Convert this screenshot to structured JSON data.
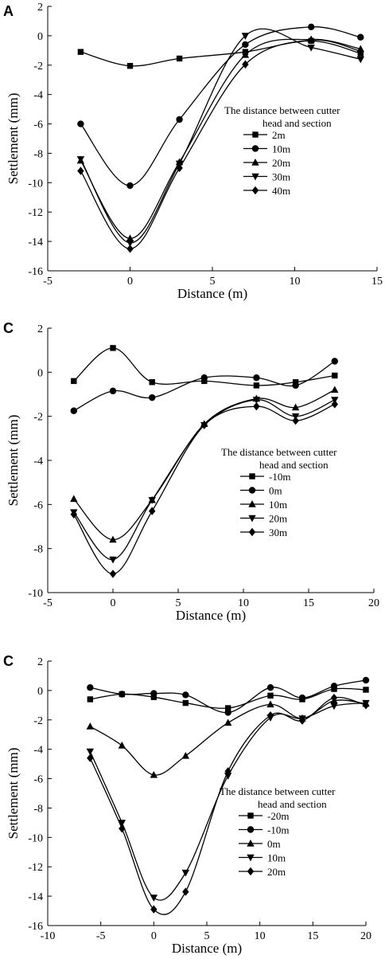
{
  "chart_data": [
    {
      "type": "line",
      "panel_label": "A",
      "xlabel": "Distance (m)",
      "ylabel": "Settlement (mm)",
      "xlim": [
        -5,
        15
      ],
      "ylim": [
        -16,
        2
      ],
      "xticks": [
        -5,
        0,
        5,
        10,
        15
      ],
      "yticks": [
        -16,
        -14,
        -12,
        -10,
        -8,
        -6,
        -4,
        -2,
        0,
        2
      ],
      "legend_title_lines": [
        "The distance between cutter",
        "head and section"
      ],
      "legend_position": "right-middle",
      "x": [
        -3,
        0,
        3,
        7,
        11,
        14
      ],
      "series": [
        {
          "name": "2m",
          "marker": "square",
          "values": [
            -1.1,
            -2.05,
            -1.55,
            -1.1,
            -0.35,
            -1.2
          ]
        },
        {
          "name": "10m",
          "marker": "circle",
          "values": [
            -6.0,
            -10.2,
            -5.7,
            -0.6,
            0.6,
            -0.1
          ]
        },
        {
          "name": "20m",
          "marker": "triangle-up",
          "values": [
            -8.5,
            -13.8,
            -8.6,
            -1.3,
            -0.25,
            -0.9
          ]
        },
        {
          "name": "30m",
          "marker": "triangle-down",
          "values": [
            -8.4,
            -14.1,
            -8.7,
            0.0,
            -0.8,
            -1.6
          ]
        },
        {
          "name": "40m",
          "marker": "diamond",
          "values": [
            -9.2,
            -14.5,
            -9.0,
            -1.95,
            -0.3,
            -1.05
          ]
        }
      ]
    },
    {
      "type": "line",
      "panel_label": "C",
      "xlabel": "Distance (m)",
      "ylabel": "Settlement (mm)",
      "xlim": [
        -5,
        20
      ],
      "ylim": [
        -10,
        2
      ],
      "xticks": [
        -5,
        0,
        5,
        10,
        15,
        20
      ],
      "yticks": [
        -10,
        -8,
        -6,
        -4,
        -2,
        0,
        2
      ],
      "legend_title_lines": [
        "The distance between cutter",
        "head and section"
      ],
      "legend_position": "right-middle",
      "x": [
        -3,
        0,
        3,
        7,
        11,
        14,
        17
      ],
      "series": [
        {
          "name": "-10m",
          "marker": "square",
          "values": [
            -0.4,
            1.1,
            -0.45,
            -0.4,
            -0.6,
            -0.45,
            -0.15
          ]
        },
        {
          "name": "0m",
          "marker": "circle",
          "values": [
            -1.75,
            -0.85,
            -1.15,
            -0.25,
            -0.25,
            -0.6,
            0.5
          ]
        },
        {
          "name": "10m",
          "marker": "triangle-up",
          "values": [
            -5.75,
            -7.6,
            -5.8,
            -2.35,
            -1.2,
            -1.6,
            -0.8
          ]
        },
        {
          "name": "20m",
          "marker": "triangle-down",
          "values": [
            -6.35,
            -8.5,
            -5.8,
            -2.4,
            -1.25,
            -2.0,
            -1.25
          ]
        },
        {
          "name": "30m",
          "marker": "diamond",
          "values": [
            -6.45,
            -9.15,
            -6.3,
            -2.4,
            -1.55,
            -2.2,
            -1.45
          ]
        }
      ]
    },
    {
      "type": "line",
      "panel_label": "C",
      "xlabel": "Distance (m)",
      "ylabel": "Settlement (mm)",
      "xlim": [
        -10,
        20
      ],
      "ylim": [
        -16,
        2
      ],
      "xticks": [
        -10,
        -5,
        0,
        5,
        10,
        15,
        20
      ],
      "yticks": [
        -16,
        -14,
        -12,
        -10,
        -8,
        -6,
        -4,
        -2,
        0,
        2
      ],
      "legend_title_lines": [
        "The distance between cutter",
        "head and section"
      ],
      "legend_position": "right-middle",
      "x": [
        -6,
        -3,
        0,
        3,
        7,
        11,
        14,
        17,
        20
      ],
      "series": [
        {
          "name": "-20m",
          "marker": "square",
          "values": [
            -0.6,
            -0.25,
            -0.45,
            -0.85,
            -1.2,
            -0.35,
            -0.6,
            0.1,
            0.05
          ]
        },
        {
          "name": "-10m",
          "marker": "circle",
          "values": [
            0.2,
            -0.25,
            -0.2,
            -0.3,
            -1.5,
            0.2,
            -0.5,
            0.3,
            0.7
          ]
        },
        {
          "name": "0m",
          "marker": "triangle-up",
          "values": [
            -2.45,
            -3.75,
            -5.75,
            -4.45,
            -2.2,
            -0.95,
            -1.9,
            -0.7,
            -0.9
          ]
        },
        {
          "name": "10m",
          "marker": "triangle-down",
          "values": [
            -4.15,
            -9.0,
            -14.1,
            -12.4,
            -5.8,
            -1.85,
            -1.9,
            -1.05,
            -0.85
          ]
        },
        {
          "name": "20m",
          "marker": "diamond",
          "values": [
            -4.6,
            -9.4,
            -14.9,
            -13.7,
            -5.5,
            -1.7,
            -2.05,
            -0.5,
            -1.0
          ]
        }
      ]
    }
  ]
}
